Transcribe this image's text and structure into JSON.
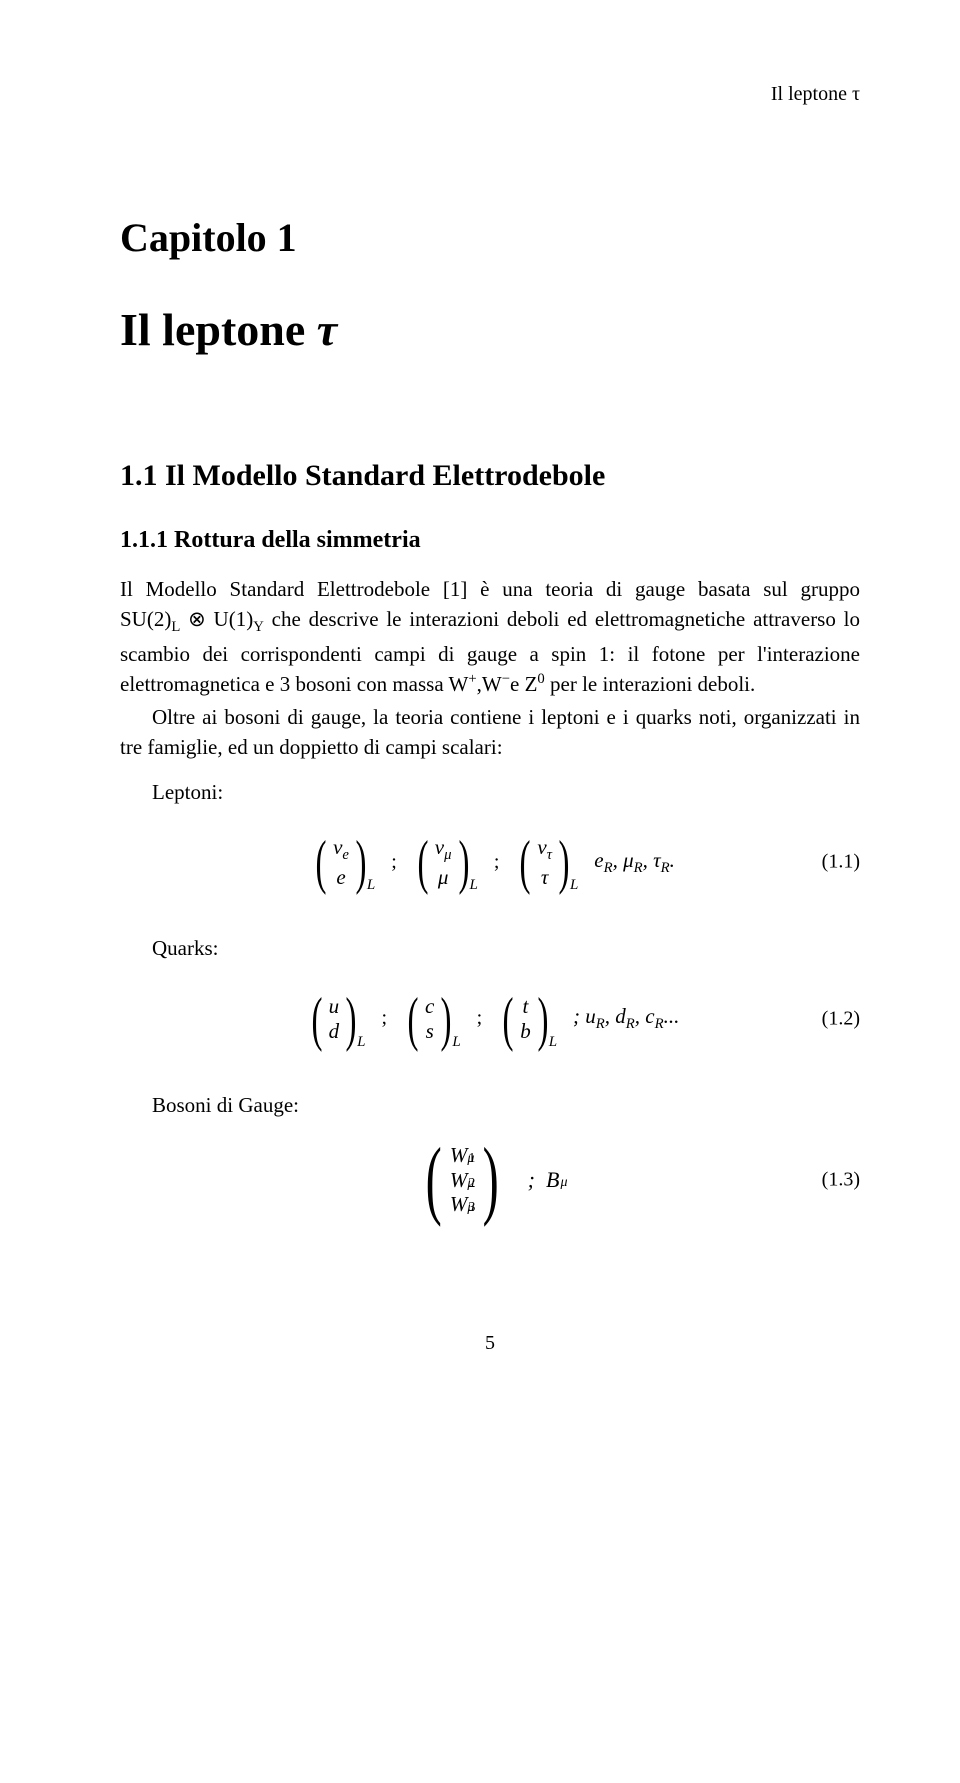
{
  "running_head": "Il leptone τ",
  "chapter_label": "Capitolo 1",
  "chapter_title": "Il leptone τ",
  "section_title": "1.1   Il Modello Standard Elettrodebole",
  "subsection_title": "1.1.1   Rottura della simmetria",
  "para1_html": "Il Modello Standard Elettrodebole [1] è una teoria di gauge basata sul gruppo <span class='nowrap'>SU(2)<sub>L</sub> ⊗ U(1)<sub>Y</sub></span> che descrive le interazioni deboli ed elettromagnetiche attraverso lo scambio dei corrispondenti campi di gauge a spin 1: il fotone per l'interazione elettromagnetica e 3 bosoni con massa W<sup>+</sup>,W<sup>−</sup>e Z<sup>0</sup> per le interazioni deboli.",
  "para2_html": "Oltre ai bosoni di gauge, la teoria contiene i leptoni e i quarks noti, organizzati in tre famiglie, ed un doppietto di campi scalari:",
  "leptoni_label": "Leptoni:",
  "quarks_label": "Quarks:",
  "gauge_label": "Bosoni di Gauge:",
  "eq1": {
    "d1": {
      "top": "ν<sub>e</sub>",
      "bot": "e",
      "sub": "L"
    },
    "d2": {
      "top": "ν<sub>μ</sub>",
      "bot": "μ",
      "sub": "L"
    },
    "d3": {
      "top": "ν<sub>τ</sub>",
      "bot": "τ",
      "sub": "L"
    },
    "tail": "e<sub>R</sub>, μ<sub>R</sub>, τ<sub>R</sub>.",
    "num": "(1.1)"
  },
  "eq2": {
    "d1": {
      "top": "u",
      "bot": "d",
      "sub": "L"
    },
    "d2": {
      "top": "c",
      "bot": "s",
      "sub": "L"
    },
    "d3": {
      "top": "t",
      "bot": "b",
      "sub": "L"
    },
    "tail": "; u<sub>R</sub>, d<sub>R</sub>, c<sub>R</sub>...",
    "num": "(1.2)"
  },
  "eq3": {
    "r1": {
      "w": "W",
      "sup": "1",
      "sub": "μ"
    },
    "r2": {
      "w": "W",
      "sup": "2",
      "sub": "μ"
    },
    "r3": {
      "w": "W",
      "sup": "3",
      "sub": "μ"
    },
    "tail_sym": "B",
    "tail_sub": "μ",
    "num": "(1.3)"
  },
  "pagenum": "5",
  "colors": {
    "bg": "#ffffff",
    "text": "#000000"
  }
}
